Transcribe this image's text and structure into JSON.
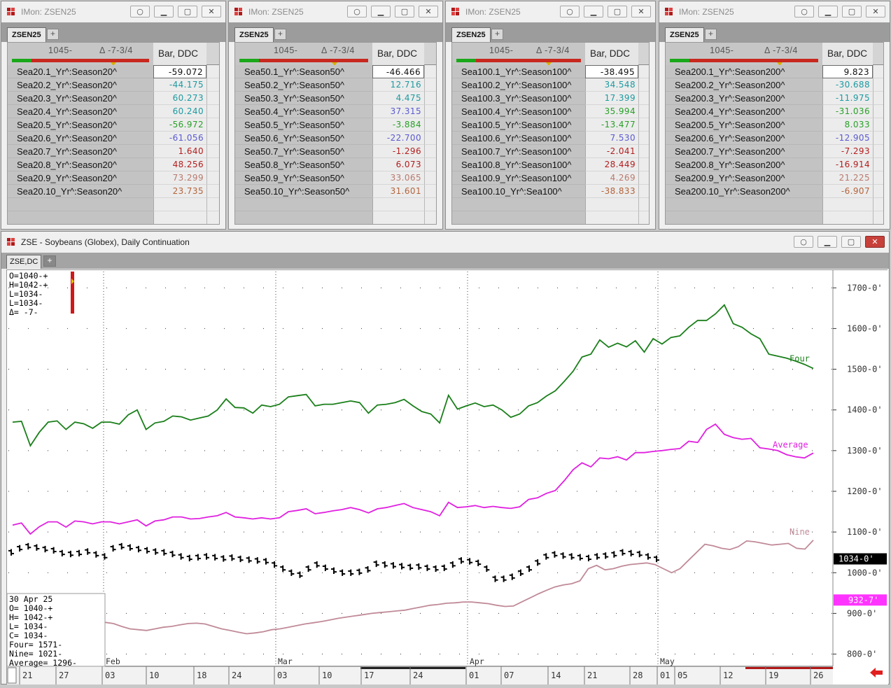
{
  "monitors": [
    {
      "title": "IMon: ZSEN25",
      "tab": "ZSEN25",
      "header": {
        "price": "1045-",
        "change": "Δ -7-3/4",
        "col": "Bar, DDC"
      },
      "rows": [
        {
          "sym": "Sea20.1_Yr^:Season20^",
          "val": "-59.072",
          "color": "#111111",
          "sel": true
        },
        {
          "sym": "Sea20.2_Yr^:Season20^",
          "val": "-44.175",
          "color": "#1e9aa0"
        },
        {
          "sym": "Sea20.3_Yr^:Season20^",
          "val": "60.273",
          "color": "#1e9aa0"
        },
        {
          "sym": "Sea20.4_Yr^:Season20^",
          "val": "60.240",
          "color": "#1e9aa0"
        },
        {
          "sym": "Sea20.5_Yr^:Season20^",
          "val": "-56.972",
          "color": "#2aa02a"
        },
        {
          "sym": "Sea20.6_Yr^:Season20^",
          "val": "-61.056",
          "color": "#5a5ad2"
        },
        {
          "sym": "Sea20.7_Yr^:Season20^",
          "val": "1.640",
          "color": "#b41e1e"
        },
        {
          "sym": "Sea20.8_Yr^:Season20^",
          "val": "48.256",
          "color": "#b41e1e"
        },
        {
          "sym": "Sea20.9_Yr^:Season20^",
          "val": "73.299",
          "color": "#b87a6e"
        },
        {
          "sym": "Sea20.10_Yr^:Season20^",
          "val": "23.735",
          "color": "#b4643c"
        }
      ]
    },
    {
      "title": "IMon: ZSEN25",
      "tab": "ZSEN25",
      "header": {
        "price": "1045-",
        "change": "Δ -7-3/4",
        "col": "Bar, DDC"
      },
      "rows": [
        {
          "sym": "Sea50.1_Yr^:Season50^",
          "val": "-46.466",
          "color": "#111111",
          "sel": true
        },
        {
          "sym": "Sea50.2_Yr^:Season50^",
          "val": "12.716",
          "color": "#1e9aa0"
        },
        {
          "sym": "Sea50.3_Yr^:Season50^",
          "val": "4.475",
          "color": "#1e9aa0"
        },
        {
          "sym": "Sea50.4_Yr^:Season50^",
          "val": "37.315",
          "color": "#5a5ad2"
        },
        {
          "sym": "Sea50.5_Yr^:Season50^",
          "val": "-3.884",
          "color": "#2aa02a"
        },
        {
          "sym": "Sea50.6_Yr^:Season50^",
          "val": "-22.700",
          "color": "#5a5ad2"
        },
        {
          "sym": "Sea50.7_Yr^:Season50^",
          "val": "-1.296",
          "color": "#b41e1e"
        },
        {
          "sym": "Sea50.8_Yr^:Season50^",
          "val": "6.073",
          "color": "#b41e1e"
        },
        {
          "sym": "Sea50.9_Yr^:Season50^",
          "val": "33.065",
          "color": "#b87a6e"
        },
        {
          "sym": "Sea50.10_Yr^:Season50^",
          "val": "31.601",
          "color": "#b4643c"
        }
      ]
    },
    {
      "title": "IMon: ZSEN25",
      "tab": "ZSEN25",
      "header": {
        "price": "1045-",
        "change": "Δ -7-3/4",
        "col": "Bar, DDC"
      },
      "rows": [
        {
          "sym": "Sea100.1_Yr^:Season100^",
          "val": "-38.495",
          "color": "#111111",
          "sel": true
        },
        {
          "sym": "Sea100.2_Yr^:Season100^",
          "val": "34.548",
          "color": "#1e9aa0"
        },
        {
          "sym": "Sea100.3_Yr^:Season100^",
          "val": "17.399",
          "color": "#1e9aa0"
        },
        {
          "sym": "Sea100.4_Yr^:Season100^",
          "val": "35.994",
          "color": "#2aa02a"
        },
        {
          "sym": "Sea100.5_Yr^:Season100^",
          "val": "-13.477",
          "color": "#2aa02a"
        },
        {
          "sym": "Sea100.6_Yr^:Season100^",
          "val": "7.530",
          "color": "#5a5ad2"
        },
        {
          "sym": "Sea100.7_Yr^:Season100^",
          "val": "-2.041",
          "color": "#b41e1e"
        },
        {
          "sym": "Sea100.8_Yr^:Season100^",
          "val": "28.449",
          "color": "#b41e1e"
        },
        {
          "sym": "Sea100.9_Yr^:Season100^",
          "val": "4.269",
          "color": "#b87a6e"
        },
        {
          "sym": "Sea100.10_Yr^:Sea100^",
          "val": "-38.833",
          "color": "#b4643c"
        }
      ]
    },
    {
      "title": "IMon: ZSEN25",
      "tab": "ZSEN25",
      "header": {
        "price": "1045-",
        "change": "Δ -7-3/4",
        "col": "Bar, DDC"
      },
      "rows": [
        {
          "sym": "Sea200.1_Yr^:Season200^",
          "val": "9.823",
          "color": "#111111",
          "sel": true
        },
        {
          "sym": "Sea200.2_Yr^:Season200^",
          "val": "-30.688",
          "color": "#1e9aa0"
        },
        {
          "sym": "Sea200.3_Yr^:Season200^",
          "val": "-11.975",
          "color": "#1e9aa0"
        },
        {
          "sym": "Sea200.4_Yr^:Season200^",
          "val": "-31.036",
          "color": "#2aa02a"
        },
        {
          "sym": "Sea200.5_Yr^:Season200^",
          "val": "8.033",
          "color": "#2aa02a"
        },
        {
          "sym": "Sea200.6_Yr^:Season200^",
          "val": "-12.905",
          "color": "#5a5ad2"
        },
        {
          "sym": "Sea200.7_Yr^:Season200^",
          "val": "-7.293",
          "color": "#b41e1e"
        },
        {
          "sym": "Sea200.8_Yr^:Season200^",
          "val": "-16.914",
          "color": "#b41e1e"
        },
        {
          "sym": "Sea200.9_Yr^:Season200^",
          "val": "21.225",
          "color": "#b87a6e"
        },
        {
          "sym": "Sea200.10_Yr^:Season200^",
          "val": "-6.907",
          "color": "#b4643c"
        }
      ]
    }
  ],
  "chart_window": {
    "title": "ZSE - Soybeans (Globex), Daily Continuation",
    "tab": "ZSE,DC",
    "tab_add": "+"
  },
  "chart_data": {
    "type": "line",
    "y_ticks": [
      "1700-0'",
      "1600-0'",
      "1500-0'",
      "1400-0'",
      "1300-0'",
      "1200-0'",
      "1100-0'",
      "1000-0'",
      "900-0'",
      "800-0'"
    ],
    "y_tick_values": [
      1700,
      1600,
      1500,
      1400,
      1300,
      1200,
      1100,
      1000,
      900,
      800
    ],
    "ylim": [
      770,
      1740
    ],
    "price_marker": {
      "label": "1034-0'",
      "value": 1034
    },
    "nine_marker": {
      "label": "932-7'",
      "value": 932.9
    },
    "month_labels": [
      "Feb",
      "Mar",
      "Apr",
      "May"
    ],
    "day_labels": [
      "21",
      "27",
      "03",
      "10",
      "18",
      "24",
      "03",
      "10",
      "17",
      "24",
      "01",
      "07",
      "14",
      "21",
      "28",
      "01",
      "05",
      "12",
      "19",
      "26"
    ],
    "ohlc_box": [
      "O=1040-+",
      "H=1042-+",
      "L=1034-",
      "L=1034-",
      "Δ=  -7-"
    ],
    "data_box": [
      "30 Apr 25",
      "O=       1040-+",
      "H=       1042-+",
      "L=       1034-",
      "C=       1034-",
      "Four=    1571-",
      "Nine=    1021-",
      "Average= 1296-"
    ],
    "series": [
      {
        "name": "Four",
        "color": "#1a7f1a",
        "values": [
          1370,
          1372,
          1312,
          1345,
          1370,
          1373,
          1352,
          1370,
          1366,
          1355,
          1370,
          1370,
          1365,
          1388,
          1400,
          1352,
          1368,
          1372,
          1385,
          1383,
          1375,
          1380,
          1385,
          1400,
          1427,
          1406,
          1405,
          1392,
          1412,
          1408,
          1414,
          1432,
          1435,
          1438,
          1410,
          1414,
          1414,
          1418,
          1422,
          1418,
          1392,
          1412,
          1414,
          1418,
          1426,
          1410,
          1396,
          1390,
          1368,
          1436,
          1402,
          1410,
          1417,
          1408,
          1412,
          1400,
          1382,
          1390,
          1410,
          1418,
          1434,
          1447,
          1470,
          1495,
          1530,
          1537,
          1572,
          1554,
          1564,
          1555,
          1570,
          1542,
          1575,
          1562,
          1578,
          1582,
          1603,
          1620,
          1620,
          1636,
          1658,
          1612,
          1603,
          1587,
          1575,
          1537,
          1532,
          1527,
          1520,
          1512,
          1502
        ]
      },
      {
        "name": "Average",
        "color": "#e020e0",
        "values": [
          1117,
          1122,
          1095,
          1113,
          1125,
          1125,
          1112,
          1127,
          1125,
          1120,
          1125,
          1125,
          1120,
          1125,
          1130,
          1115,
          1127,
          1130,
          1137,
          1137,
          1132,
          1133,
          1137,
          1140,
          1148,
          1137,
          1135,
          1132,
          1135,
          1132,
          1135,
          1150,
          1153,
          1157,
          1145,
          1148,
          1152,
          1155,
          1160,
          1155,
          1147,
          1157,
          1160,
          1165,
          1170,
          1160,
          1155,
          1150,
          1140,
          1173,
          1160,
          1162,
          1165,
          1160,
          1163,
          1160,
          1158,
          1162,
          1180,
          1184,
          1195,
          1202,
          1226,
          1253,
          1270,
          1260,
          1282,
          1280,
          1285,
          1277,
          1295,
          1295,
          1298,
          1300,
          1303,
          1305,
          1323,
          1320,
          1352,
          1365,
          1340,
          1332,
          1328,
          1330,
          1307,
          1304,
          1300,
          1290,
          1285,
          1282,
          1294
        ]
      },
      {
        "name": "Nine",
        "color": "#c08a98",
        "values": [
          878,
          875,
          868,
          862,
          860,
          858,
          862,
          866,
          868,
          872,
          875,
          876,
          874,
          868,
          862,
          858,
          854,
          850,
          852,
          855,
          860,
          862,
          866,
          870,
          874,
          877,
          880,
          884,
          888,
          891,
          894,
          897,
          900,
          902,
          904,
          906,
          908,
          912,
          916,
          920,
          922,
          925,
          926,
          928,
          928,
          926,
          924,
          920,
          917,
          918,
          928,
          938,
          948,
          957,
          965,
          970,
          973,
          980,
          1010,
          1018,
          1007,
          1010,
          1016,
          1020,
          1022,
          1024,
          1020,
          1010,
          1000,
          1010,
          1030,
          1050,
          1070,
          1066,
          1060,
          1057,
          1064,
          1078,
          1076,
          1072,
          1068,
          1070,
          1072,
          1060,
          1058,
          1080
        ]
      },
      {
        "name": "Bars",
        "color": "#000000",
        "values": [
          1050,
          1060,
          1065,
          1062,
          1058,
          1055,
          1048,
          1046,
          1048,
          1052,
          1045,
          1040,
          1060,
          1065,
          1062,
          1058,
          1055,
          1052,
          1050,
          1046,
          1040,
          1036,
          1038,
          1040,
          1038,
          1035,
          1037,
          1034,
          1032,
          1030,
          1028,
          1020,
          1010,
          1000,
          995,
          1010,
          1020,
          1012,
          1005,
          1000,
          1000,
          1002,
          1008,
          1022,
          1020,
          1018,
          1016,
          1014,
          1015,
          1012,
          1010,
          1012,
          1020,
          1030,
          1028,
          1024,
          1010,
          985,
          985,
          990,
          1000,
          1010,
          1025,
          1040,
          1045,
          1042,
          1040,
          1038,
          1036,
          1040,
          1042,
          1045,
          1050,
          1048,
          1046,
          1040,
          1034
        ]
      }
    ]
  }
}
